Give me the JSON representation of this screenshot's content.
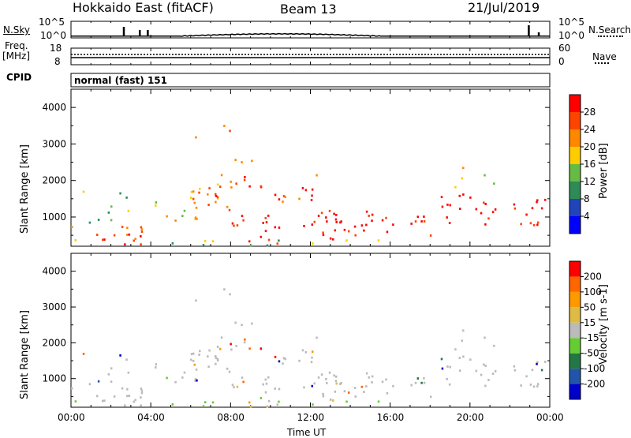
{
  "header": {
    "radar": "Hokkaido East (fitACF)",
    "beam": "Beam 13",
    "date": "21/Jul/2019"
  },
  "left_labels": {
    "nsky": "N.Sky",
    "freq_line1": "Freq.",
    "freq_line2": "[MHz]",
    "cpid": "CPID"
  },
  "right_labels": {
    "nsearch": "N.Search",
    "nave": "Nave"
  },
  "cpid_text": "normal (fast) 151",
  "x_ticks": [
    "00:00",
    "04:00",
    "08:00",
    "12:00",
    "16:00",
    "20:00",
    "00:00"
  ],
  "x_axis_label": "Time UT",
  "colors": {
    "power": [
      "#0000ff",
      "#2244bb",
      "#2e8b57",
      "#66bb44",
      "#ffcc00",
      "#ff8800",
      "#ff4400",
      "#ff0000"
    ],
    "velocity": [
      "#0000cc",
      "#2255aa",
      "#227744",
      "#66cc33",
      "#bbbbbb",
      "#ddbb44",
      "#ff9900",
      "#ff6600",
      "#ff0000"
    ],
    "nsky_trace": "#000000"
  },
  "chart_data": [
    {
      "type": "line",
      "name": "noise-panel",
      "left_axis_labels": [
        "10^5",
        "10^0"
      ],
      "right_axis_labels": [
        "10^5",
        "10^0"
      ],
      "x_range_hours": [
        0,
        24
      ]
    },
    {
      "type": "line",
      "name": "freq-nave-panel",
      "left_axis_labels": [
        "18",
        "8"
      ],
      "right_axis_labels": [
        "60",
        "0"
      ]
    },
    {
      "type": "heatmap",
      "name": "power-panel",
      "ylabel": "Slant Range [km]",
      "yticks": [
        1000,
        2000,
        3000,
        4000
      ],
      "ylim": [
        200,
        4500
      ],
      "xlim": [
        0,
        24
      ],
      "colorbar_label": "Power [dB]",
      "colorbar_ticks": [
        "28",
        "24",
        "20",
        "16",
        "12",
        "8",
        "4"
      ]
    },
    {
      "type": "heatmap",
      "name": "velocity-panel",
      "ylabel": "Slant Range [km]",
      "yticks": [
        1000,
        2000,
        3000,
        4000
      ],
      "ylim": [
        200,
        4500
      ],
      "xlim": [
        0,
        24
      ],
      "colorbar_label": "Velocity [m s-1]",
      "colorbar_ticks": [
        "200",
        "100",
        "50",
        "15",
        "-15",
        "-50",
        "-100",
        "-200"
      ]
    }
  ]
}
